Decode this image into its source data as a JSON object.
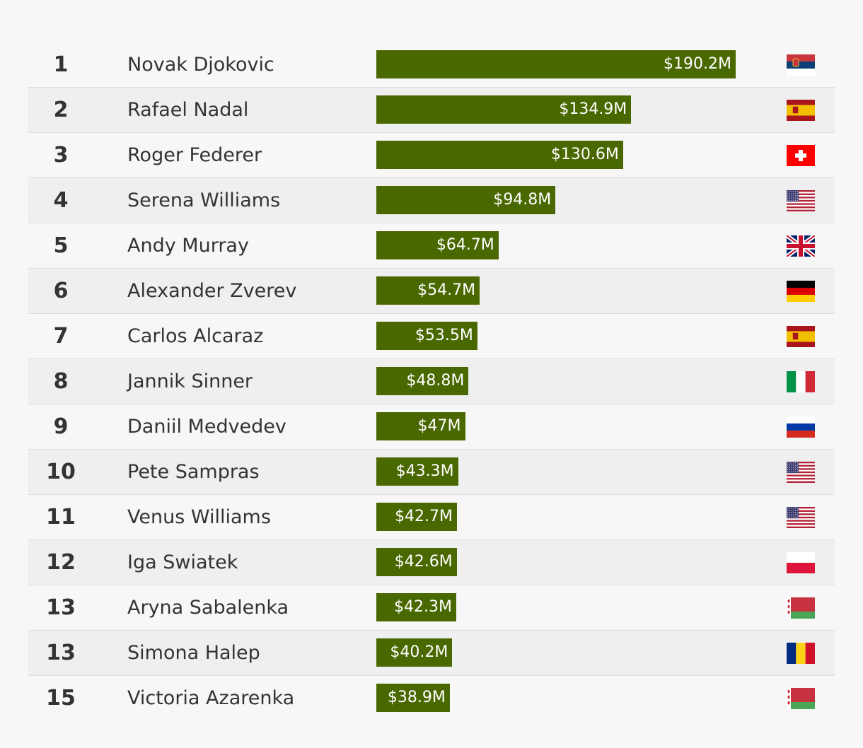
{
  "chart_data": {
    "type": "bar",
    "orientation": "horizontal",
    "title": "",
    "xlabel": "",
    "ylabel": "",
    "xlim": [
      0,
      190.2
    ],
    "grid": false,
    "bar_color": "#4a6800",
    "row_stripe_color": "#efefef",
    "rows": [
      {
        "rank": "1",
        "name": "Novak Djokovic",
        "value": 190.2,
        "label": "$190.2M",
        "flag": "serbia-flag-icon"
      },
      {
        "rank": "2",
        "name": "Rafael Nadal",
        "value": 134.9,
        "label": "$134.9M",
        "flag": "spain-flag-icon"
      },
      {
        "rank": "3",
        "name": "Roger Federer",
        "value": 130.6,
        "label": "$130.6M",
        "flag": "switzerland-flag-icon"
      },
      {
        "rank": "4",
        "name": "Serena Williams",
        "value": 94.8,
        "label": "$94.8M",
        "flag": "usa-flag-icon"
      },
      {
        "rank": "5",
        "name": "Andy Murray",
        "value": 64.7,
        "label": "$64.7M",
        "flag": "uk-flag-icon"
      },
      {
        "rank": "6",
        "name": "Alexander Zverev",
        "value": 54.7,
        "label": "$54.7M",
        "flag": "germany-flag-icon"
      },
      {
        "rank": "7",
        "name": "Carlos Alcaraz",
        "value": 53.5,
        "label": "$53.5M",
        "flag": "spain-flag-icon"
      },
      {
        "rank": "8",
        "name": "Jannik Sinner",
        "value": 48.8,
        "label": "$48.8M",
        "flag": "italy-flag-icon"
      },
      {
        "rank": "9",
        "name": "Daniil Medvedev",
        "value": 47,
        "label": "$47M",
        "flag": "russia-flag-icon"
      },
      {
        "rank": "10",
        "name": "Pete Sampras",
        "value": 43.3,
        "label": "$43.3M",
        "flag": "usa-flag-icon"
      },
      {
        "rank": "11",
        "name": "Venus Williams",
        "value": 42.7,
        "label": "$42.7M",
        "flag": "usa-flag-icon"
      },
      {
        "rank": "12",
        "name": "Iga Swiatek",
        "value": 42.6,
        "label": "$42.6M",
        "flag": "poland-flag-icon"
      },
      {
        "rank": "13",
        "name": "Aryna Sabalenka",
        "value": 42.3,
        "label": "$42.3M",
        "flag": "belarus-flag-icon"
      },
      {
        "rank": "13",
        "name": "Simona Halep",
        "value": 40.2,
        "label": "$40.2M",
        "flag": "romania-flag-icon"
      },
      {
        "rank": "15",
        "name": "Victoria Azarenka",
        "value": 38.9,
        "label": "$38.9M",
        "flag": "belarus-flag-icon"
      }
    ]
  }
}
